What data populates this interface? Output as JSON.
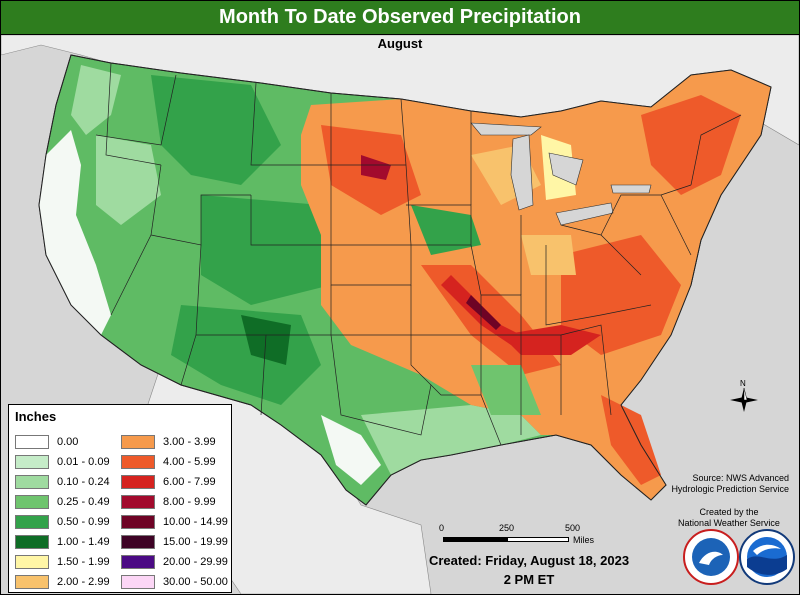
{
  "title": "Month To Date Observed Precipitation",
  "subtitle": "August",
  "legend": {
    "title": "Inches",
    "items": [
      {
        "label": "0.00",
        "color": "#ffffff"
      },
      {
        "label": "0.01 - 0.09",
        "color": "#c5ecc8"
      },
      {
        "label": "0.10 - 0.24",
        "color": "#9fdba0"
      },
      {
        "label": "0.25 - 0.49",
        "color": "#6fc46e"
      },
      {
        "label": "0.50 - 0.99",
        "color": "#33a24a"
      },
      {
        "label": "1.00 - 1.49",
        "color": "#0f6d26"
      },
      {
        "label": "1.50 - 1.99",
        "color": "#fff6a6"
      },
      {
        "label": "2.00 - 2.99",
        "color": "#f8c26c"
      },
      {
        "label": "3.00 - 3.99",
        "color": "#f69a4c"
      },
      {
        "label": "4.00 - 5.99",
        "color": "#ee5a2a"
      },
      {
        "label": "6.00 - 7.99",
        "color": "#d5231f"
      },
      {
        "label": "8.00 - 9.99",
        "color": "#a20a2d"
      },
      {
        "label": "10.00 - 14.99",
        "color": "#6e0325"
      },
      {
        "label": "15.00 - 19.99",
        "color": "#3e0325"
      },
      {
        "label": "20.00 - 29.99",
        "color": "#4b0a84"
      },
      {
        "label": "30.00 - 50.00",
        "color": "#fcd6f6"
      }
    ]
  },
  "source": {
    "line1": "Source: NWS Advanced",
    "line2": "Hydrologic Prediction Service"
  },
  "credit": {
    "line1": "Created by the",
    "line2": "National Weather Service"
  },
  "created": "Created: Friday, August 18, 2023",
  "created_time": "2 PM ET",
  "scale": {
    "ticks": [
      "0",
      "250",
      "500"
    ],
    "unit": "Miles"
  },
  "compass_label": "N",
  "icons": [
    "noaa-logo",
    "nws-logo",
    "compass-rose-icon"
  ]
}
